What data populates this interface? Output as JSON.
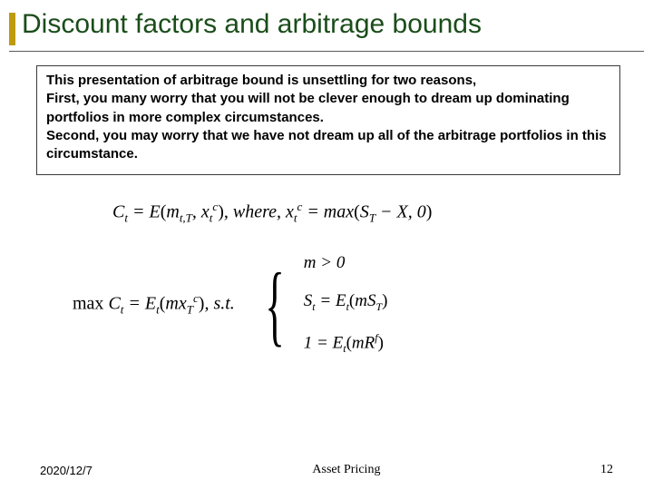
{
  "title": "Discount factors and arbitrage bounds",
  "textbox": {
    "line1": "This presentation of arbitrage bound is unsettling for two reasons,",
    "line2": "First, you many worry that you will not be clever enough to dream up dominating portfolios in more complex circumstances.",
    "line3": "Second, you may worry that we have not dream up all of the arbitrage portfolios in this circumstance."
  },
  "formulas": {
    "main_eq_lhs": "C",
    "main_eq_sub1": "t",
    "main_eq_mid": " = E",
    "main_eq_paren_open": "(",
    "main_eq_m": "m",
    "main_eq_msub": "t,T",
    "main_eq_comma": ", ",
    "main_eq_x": "x",
    "main_eq_xsub": "t",
    "main_eq_xsup": "c",
    "main_eq_paren_close": ")",
    "main_eq_where": ", where, ",
    "main_eq_x2": "x",
    "main_eq_x2sub": "t",
    "main_eq_x2sup": "c",
    "main_eq_eq": " = max",
    "main_eq_paren2_open": "(",
    "main_eq_S": "S",
    "main_eq_Ssub": "T",
    "main_eq_minus": " − ",
    "main_eq_X": "X",
    "main_eq_zero": ", 0",
    "main_eq_paren2_close": ")",
    "max_label": "max ",
    "max_C": "C",
    "max_Csub": "t",
    "max_eq": " = E",
    "max_Esub": "t",
    "max_paren_open": "(",
    "max_mx": "mx",
    "max_mxsub": "T",
    "max_mxsup": "c",
    "max_paren_close": ")",
    "max_st": ", s.t.",
    "c1": "m > 0",
    "c2_S": "S",
    "c2_Ssub": "t",
    "c2_eq": " = E",
    "c2_Esub": "t",
    "c2_open": "(",
    "c2_mS": "mS",
    "c2_mSsub": "T",
    "c2_close": ")",
    "c3_1": "1 = E",
    "c3_Esub": "t",
    "c3_open": "(",
    "c3_mR": "mR",
    "c3_Rsup": "f",
    "c3_close": ")"
  },
  "footer": {
    "date": "2020/12/7",
    "title": "Asset Pricing",
    "page": "12"
  },
  "colors": {
    "title_color": "#1a4d1a",
    "accent_color": "#bd9b0a",
    "underline_color": "#5a5a5a",
    "box_border": "#3a3a3a"
  }
}
